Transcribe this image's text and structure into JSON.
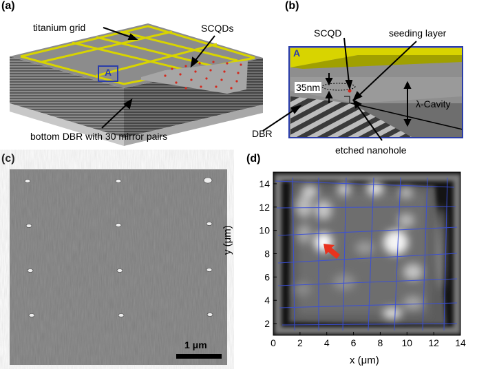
{
  "figure": {
    "panels": {
      "a": {
        "label": "(a)",
        "annotations": {
          "titanium_grid": "titanium grid",
          "scqds": "SCQDs",
          "bottom_dbr": "bottom DBR with 30 mirror pairs",
          "inset_marker": "A"
        }
      },
      "b": {
        "label": "(b)",
        "annotations": {
          "inset_marker": "A",
          "scqd": "SCQD",
          "seeding_layer": "seeding layer",
          "thickness": "35nm",
          "cavity": "λ-Cavity",
          "dbr": "DBR",
          "etched_nanohole": "etched nanohole"
        }
      },
      "c": {
        "label": "(c)",
        "scale_bar": "1 μm"
      },
      "d": {
        "label": "(d)"
      }
    },
    "colors": {
      "titanium": "#d8d400",
      "frame_blue": "#2a3caa",
      "dot_red": "#d42a1e",
      "grid_blue": "#3a4fd8",
      "arrow_red": "#e8321e"
    }
  },
  "chart_data": {
    "type": "heatmap",
    "xlabel": "x (μm)",
    "ylabel": "y (μm)",
    "xlim": [
      0,
      14
    ],
    "ylim": [
      1,
      15
    ],
    "xticks": [
      "0",
      "2",
      "4",
      "6",
      "8",
      "10",
      "12",
      "14"
    ],
    "yticks": [
      "2",
      "4",
      "6",
      "8",
      "10",
      "12",
      "14"
    ],
    "colormap": "grayscale"
  }
}
